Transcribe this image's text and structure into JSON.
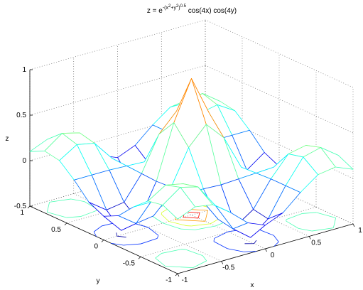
{
  "chart_data": {
    "type": "mesh",
    "title": [
      "z = e",
      "-(x",
      "2",
      "+y",
      "2",
      ")",
      "0.5",
      " cos(4x) cos(4y)"
    ],
    "xlabel": "x",
    "ylabel": "y",
    "zlabel": "z",
    "x": [
      -1,
      -0.8,
      -0.6,
      -0.4,
      -0.2,
      0,
      0.2,
      0.4,
      0.6,
      0.8,
      1
    ],
    "y": [
      -1,
      -0.8,
      -0.6,
      -0.4,
      -0.2,
      0,
      0.2,
      0.4,
      0.6,
      0.8,
      1
    ],
    "z": [
      [
        0.1,
        0.18,
        0.15,
        0.01,
        -0.16,
        -0.24,
        -0.16,
        0.01,
        0.15,
        0.18,
        0.1
      ],
      [
        0.18,
        0.32,
        0.27,
        0.01,
        -0.3,
        -0.45,
        -0.3,
        0.01,
        0.27,
        0.32,
        0.18
      ],
      [
        0.15,
        0.27,
        0.23,
        0.01,
        -0.27,
        -0.4,
        -0.27,
        0.01,
        0.23,
        0.27,
        0.15
      ],
      [
        0.01,
        0.01,
        0.01,
        0,
        -0.01,
        -0.02,
        -0.01,
        0,
        0.01,
        0.01,
        0.01
      ],
      [
        -0.16,
        -0.3,
        -0.27,
        -0.01,
        0.37,
        0.57,
        0.37,
        -0.01,
        -0.27,
        -0.3,
        -0.16
      ],
      [
        -0.24,
        -0.45,
        -0.4,
        -0.02,
        0.57,
        1,
        0.57,
        -0.02,
        -0.4,
        -0.45,
        -0.24
      ],
      [
        -0.16,
        -0.3,
        -0.27,
        -0.01,
        0.37,
        0.57,
        0.37,
        -0.01,
        -0.27,
        -0.3,
        -0.16
      ],
      [
        0.01,
        0.01,
        0.01,
        0,
        -0.01,
        -0.02,
        -0.01,
        0,
        0.01,
        0.01,
        0.01
      ],
      [
        0.15,
        0.27,
        0.23,
        0.01,
        -0.27,
        -0.4,
        -0.27,
        0.01,
        0.23,
        0.27,
        0.15
      ],
      [
        0.18,
        0.32,
        0.27,
        0.01,
        -0.3,
        -0.45,
        -0.3,
        0.01,
        0.27,
        0.32,
        0.18
      ],
      [
        0.1,
        0.18,
        0.15,
        0.01,
        -0.16,
        -0.24,
        -0.16,
        0.01,
        0.15,
        0.18,
        0.1
      ]
    ],
    "xlim": [
      -1,
      1
    ],
    "ylim": [
      -1,
      1
    ],
    "zlim": [
      -0.5,
      1
    ],
    "xticks": [
      -1,
      -0.5,
      0,
      0.5,
      1
    ],
    "yticks": [
      -1,
      -0.5,
      0,
      0.5,
      1
    ],
    "zticks": [
      -0.5,
      0,
      0.5,
      1
    ],
    "grid": true,
    "colormap": "jet",
    "contour_levels": [
      -0.4,
      -0.2,
      0.2,
      0.4,
      0.6,
      0.8
    ]
  }
}
